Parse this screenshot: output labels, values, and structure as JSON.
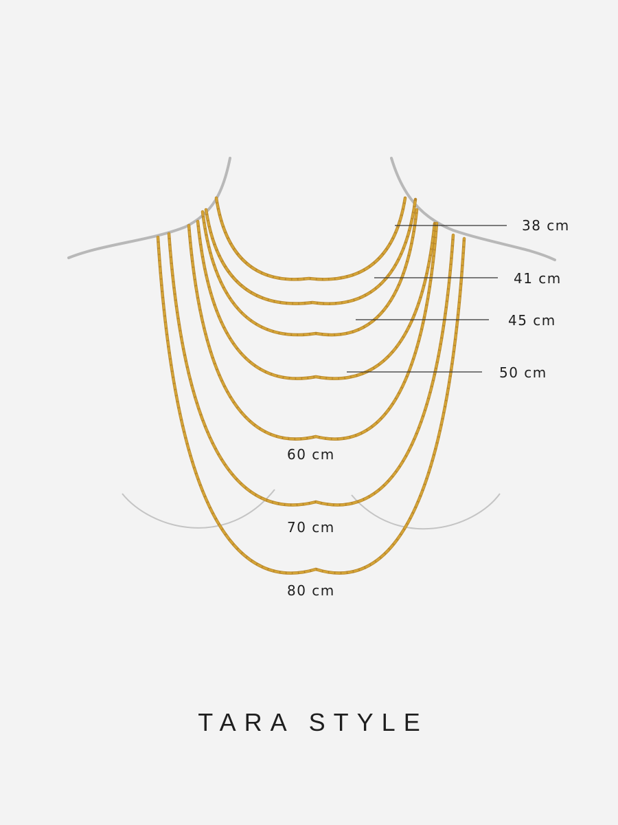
{
  "title": "TARA STYLE",
  "chain_color": "#d4a437",
  "outline_color": "#b8b8b8",
  "lengths": [
    {
      "label": "38 cm"
    },
    {
      "label": "41 cm"
    },
    {
      "label": "45 cm"
    },
    {
      "label": "50 cm"
    },
    {
      "label": "60 cm"
    },
    {
      "label": "70 cm"
    },
    {
      "label": "80 cm"
    }
  ]
}
